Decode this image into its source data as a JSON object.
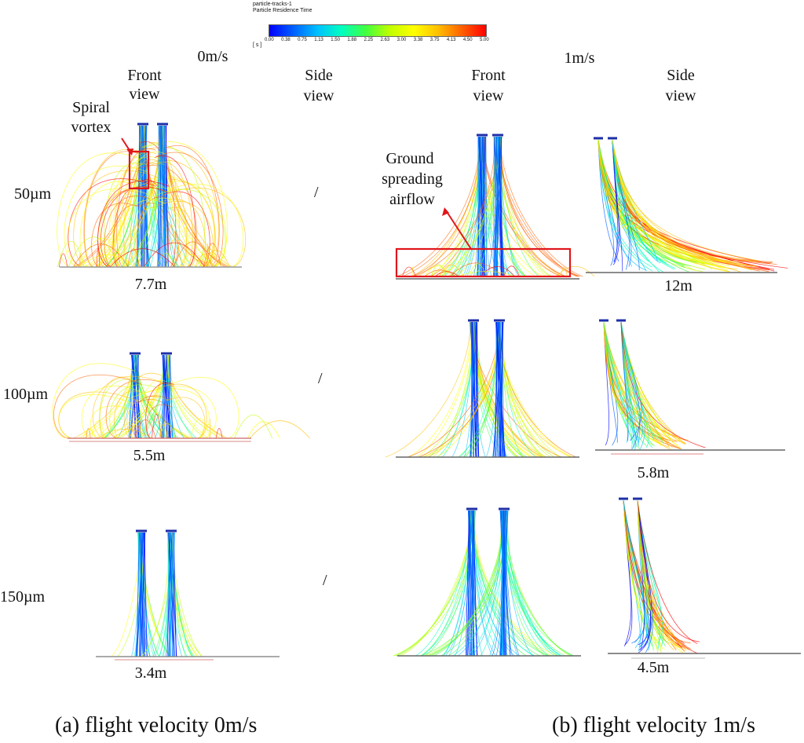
{
  "colorbar": {
    "title1": "particle-tracks-1",
    "title2": "Particle Residence Time",
    "unit": "[ s ]",
    "ticks": [
      "0.00",
      "0.38",
      "0.75",
      "1.13",
      "1.50",
      "1.88",
      "2.25",
      "2.63",
      "3.00",
      "3.38",
      "3.75",
      "4.13",
      "4.50",
      "5.00"
    ],
    "colors": [
      "#0000ff",
      "#0060ff",
      "#00c0ff",
      "#00ffc0",
      "#40ff40",
      "#c0ff00",
      "#ffff00",
      "#ffc000",
      "#ff6000",
      "#ff0000"
    ]
  },
  "headers": {
    "v0": "0m/s",
    "v1": "1m/s",
    "front_view_left": [
      "Front",
      "view"
    ],
    "side_view_left": [
      "Side",
      "view"
    ],
    "front_view_right": [
      "Front",
      "view"
    ],
    "side_view_right": [
      "Side",
      "view"
    ]
  },
  "rows": [
    {
      "size": "50µm",
      "slash": "/",
      "width_left": "7.7m",
      "width_right": "12m"
    },
    {
      "size": "100µm",
      "slash": "/",
      "width_left": "5.5m",
      "width_right": "5.8m"
    },
    {
      "size": "150µm",
      "slash": "/",
      "width_left": "3.4m",
      "width_right": "4.5m"
    }
  ],
  "annotations": {
    "spiral": [
      "Spiral",
      "vortex"
    ],
    "ground": [
      "Ground",
      "spreading",
      "airflow"
    ]
  },
  "captions": {
    "left": "(a) flight velocity 0m/s",
    "right": "(b) flight velocity 1m/s"
  },
  "accent": "#e0161b"
}
